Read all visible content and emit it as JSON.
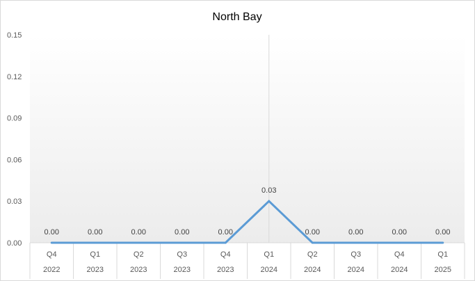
{
  "chart_data": {
    "type": "line",
    "title": "North Bay",
    "xlabel": "",
    "ylabel": "",
    "categories": [
      {
        "quarter": "Q4",
        "year": "2022"
      },
      {
        "quarter": "Q1",
        "year": "2023"
      },
      {
        "quarter": "Q2",
        "year": "2023"
      },
      {
        "quarter": "Q3",
        "year": "2023"
      },
      {
        "quarter": "Q4",
        "year": "2023"
      },
      {
        "quarter": "Q1",
        "year": "2024"
      },
      {
        "quarter": "Q2",
        "year": "2024"
      },
      {
        "quarter": "Q3",
        "year": "2024"
      },
      {
        "quarter": "Q4",
        "year": "2024"
      },
      {
        "quarter": "Q1",
        "year": "2025"
      }
    ],
    "series": [
      {
        "values": [
          0,
          0,
          0,
          0,
          0,
          0.03,
          0,
          0,
          0,
          0
        ],
        "labels": [
          "0.00",
          "0.00",
          "0.00",
          "0.00",
          "0.00",
          "0.03",
          "0.00",
          "0.00",
          "0.00",
          "0.00"
        ],
        "color": "#5b9bd5"
      }
    ],
    "ylim": [
      0,
      0.15
    ],
    "yticks": [
      "0.00",
      "0.03",
      "0.06",
      "0.09",
      "0.12",
      "0.15"
    ],
    "highlight_category_index": 5,
    "grid": false,
    "legend": "none"
  }
}
